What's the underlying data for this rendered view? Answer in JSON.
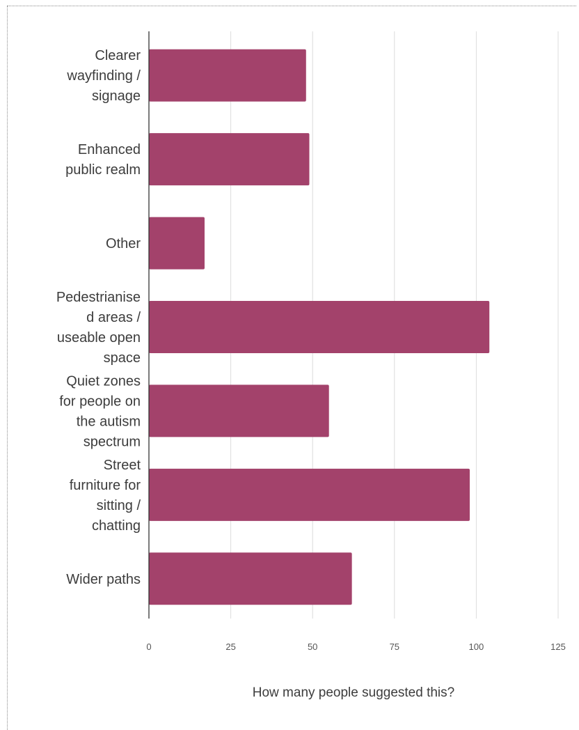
{
  "chart_data": {
    "type": "bar",
    "orientation": "horizontal",
    "categories": [
      "Clearer wayfinding / signage",
      "Enhanced public realm",
      "Other",
      "Pedestrianised areas / useable open space",
      "Quiet zones for people on the autism spectrum",
      "Street furniture for sitting / chatting",
      "Wider paths"
    ],
    "category_label_lines": [
      [
        "Clearer",
        "wayfinding /",
        "signage"
      ],
      [
        "Enhanced",
        "public realm"
      ],
      [
        "Other"
      ],
      [
        "Pedestrianise",
        "d areas /",
        "useable open",
        "space"
      ],
      [
        "Quiet zones",
        "for people on",
        "the autism",
        "spectrum"
      ],
      [
        "Street",
        "furniture for",
        "sitting /",
        "chatting"
      ],
      [
        "Wider paths"
      ]
    ],
    "values": [
      48,
      49,
      17,
      104,
      55,
      98,
      62
    ],
    "xlabel": "How many people suggested this?",
    "ylabel": "",
    "xlim": [
      0,
      125
    ],
    "ticks": [
      0,
      25,
      50,
      75,
      100,
      125
    ],
    "tick_labels": [
      "0",
      "25",
      "50",
      "75",
      "100",
      "125"
    ],
    "grid": true,
    "bar_color": "#a3426b",
    "legend": "none"
  }
}
